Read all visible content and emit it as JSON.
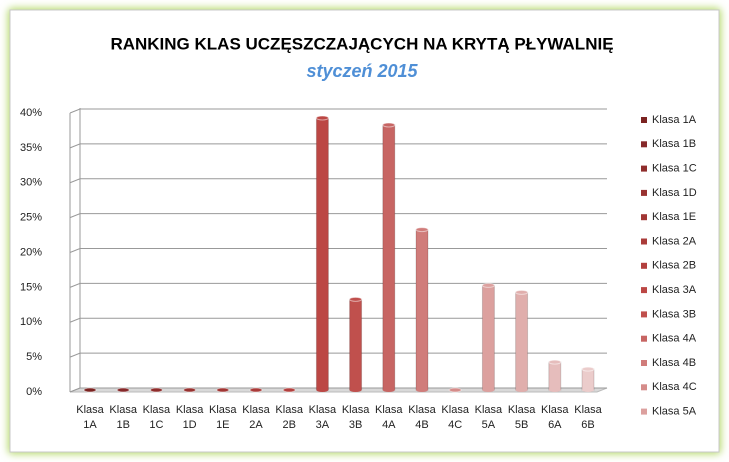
{
  "chart_data": {
    "type": "bar",
    "title": "RANKING KLAS UCZĘSZCZAJĄCYCH  NA KRYTĄ PŁYWALNIĘ",
    "subtitle": "styczeń 2015",
    "categories": [
      "Klasa 1A",
      "Klasa 1B",
      "Klasa 1C",
      "Klasa 1D",
      "Klasa 1E",
      "Klasa 2A",
      "Klasa 2B",
      "Klasa 3A",
      "Klasa 3B",
      "Klasa 4A",
      "Klasa 4B",
      "Klasa 4C",
      "Klasa 5A",
      "Klasa 5B",
      "Klasa 6A",
      "Klasa 6B"
    ],
    "values": [
      0,
      0,
      0,
      0,
      0,
      0,
      0,
      39,
      13,
      38,
      23,
      0,
      15,
      14,
      4,
      3
    ],
    "colors": [
      "#7b2321",
      "#86292a",
      "#8f2d2c",
      "#983230",
      "#a13634",
      "#aa3b39",
      "#b3403e",
      "#bc4744",
      "#c0504d",
      "#c76563",
      "#d07c7a",
      "#d58c8a",
      "#dca09e",
      "#e0aeac",
      "#e6bdbc",
      "#ebcccb"
    ],
    "legend": [
      "Klasa 1A",
      "Klasa 1B",
      "Klasa 1C",
      "Klasa 1D",
      "Klasa 1E",
      "Klasa 2A",
      "Klasa 2B",
      "Klasa 3A",
      "Klasa 3B",
      "Klasa 4A",
      "Klasa 4B",
      "Klasa 4C",
      "Klasa 5A"
    ],
    "ylim": [
      0,
      40
    ],
    "yticks": [
      {
        "value": 0,
        "label": "0%"
      },
      {
        "value": 5,
        "label": "5%"
      },
      {
        "value": 10,
        "label": "10%"
      },
      {
        "value": 15,
        "label": "15%"
      },
      {
        "value": 20,
        "label": "20%"
      },
      {
        "value": 25,
        "label": "25%"
      },
      {
        "value": 30,
        "label": "30%"
      },
      {
        "value": 35,
        "label": "35%"
      },
      {
        "value": 40,
        "label": "40%"
      }
    ],
    "grid": true
  }
}
